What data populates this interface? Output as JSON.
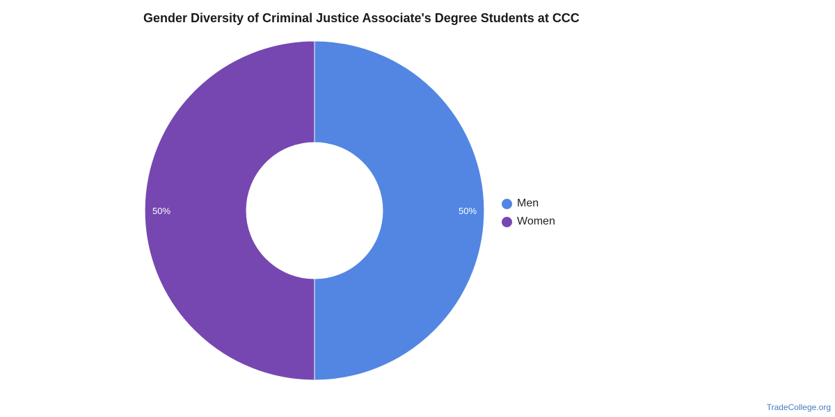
{
  "chart_data": {
    "type": "pie",
    "title": "Gender Diversity of Criminal Justice Associate's Degree Students at CCC",
    "categories": [
      "Men",
      "Women"
    ],
    "values": [
      50,
      50
    ],
    "value_labels": [
      "50%",
      "50%"
    ],
    "colors": [
      "#5286e2",
      "#7647b0"
    ],
    "donut": true,
    "legend_position": "right"
  },
  "legend": {
    "items": [
      {
        "label": "Men",
        "color": "#5286e2"
      },
      {
        "label": "Women",
        "color": "#7647b0"
      }
    ]
  },
  "footer": {
    "source": "TradeCollege.org"
  }
}
